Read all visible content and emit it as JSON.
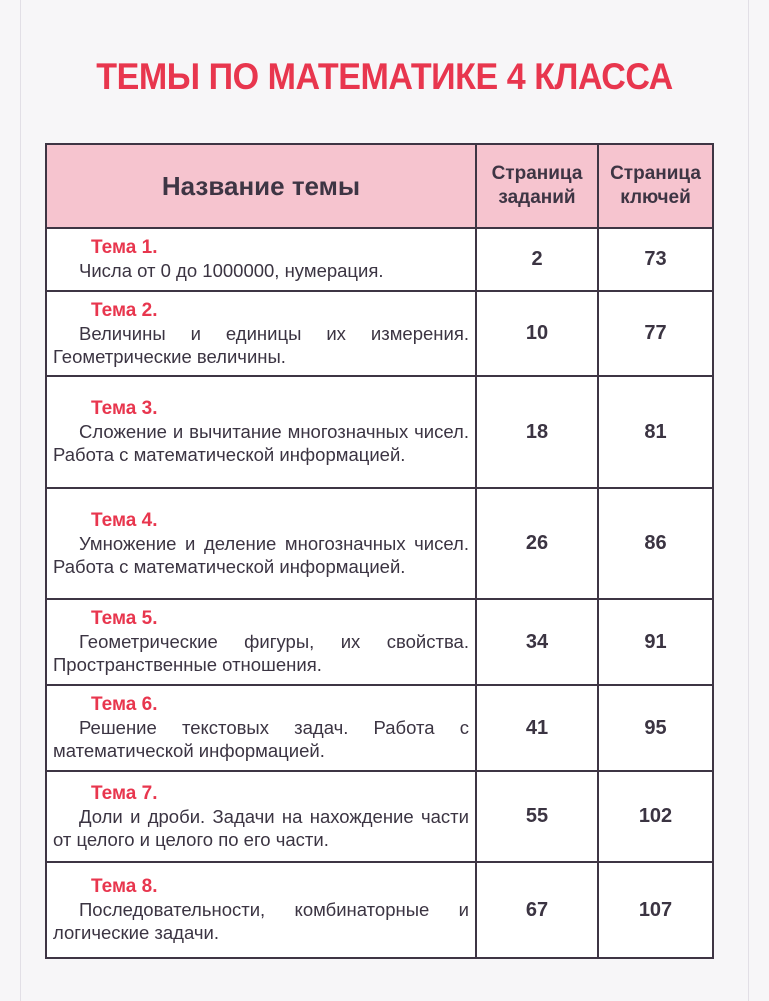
{
  "title": "ТЕМЫ ПО МАТЕМАТИКЕ 4 КЛАССА",
  "table": {
    "headers": {
      "name": "Название темы",
      "tasks_page": "Страница заданий",
      "keys_page": "Страница ключей"
    },
    "rows": [
      {
        "topic": "Тема 1.",
        "description": "Числа от 0 до 1000000, нумерация.",
        "tasks_page": "2",
        "keys_page": "73"
      },
      {
        "topic": "Тема 2.",
        "description": "Величины и единицы их измерения. Геометрические величины.",
        "tasks_page": "10",
        "keys_page": "77"
      },
      {
        "topic": "Тема 3.",
        "description": "Сложение и вычитание многозначных чисел. Работа с математической информацией.",
        "tasks_page": "18",
        "keys_page": "81"
      },
      {
        "topic": "Тема 4.",
        "description": "Умножение и деление многозначных чисел. Работа с математической информацией.",
        "tasks_page": "26",
        "keys_page": "86"
      },
      {
        "topic": "Тема 5.",
        "description": "Геометрические фигуры, их свойства. Пространственные отношения.",
        "tasks_page": "34",
        "keys_page": "91"
      },
      {
        "topic": "Тема 6.",
        "description": "Решение текстовых задач. Работа с математической информацией.",
        "tasks_page": "41",
        "keys_page": "95"
      },
      {
        "topic": "Тема 7.",
        "description": "Доли и дроби. Задачи на нахождение части от целого и целого по его части.",
        "tasks_page": "55",
        "keys_page": "102"
      },
      {
        "topic": "Тема 8.",
        "description": "Последовательности, комбинаторные и логические задачи.",
        "tasks_page": "67",
        "keys_page": "107"
      }
    ]
  },
  "colors": {
    "accent": "#e8364e",
    "header_bg": "#f6c4cf",
    "border": "#3e3544"
  }
}
